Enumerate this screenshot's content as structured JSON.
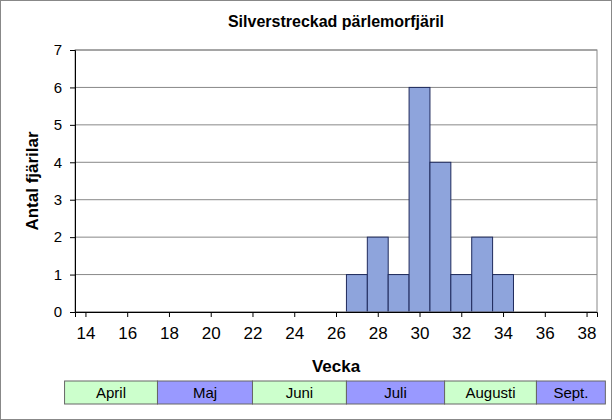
{
  "chart_data": {
    "type": "histogram",
    "title": "Silverstreckad pärlemorfjäril",
    "x_label": "Vecka",
    "y_label": "Antal fjärilar",
    "bins": [
      26.5,
      27.5,
      28.5,
      29.5,
      30.5,
      31.5,
      32.5,
      33.5,
      34.5
    ],
    "values": [
      1,
      2,
      1,
      6,
      4,
      1,
      2,
      1
    ],
    "color": "#8ea4dc",
    "xlim": [
      13.5,
      38.5
    ],
    "xticks": [
      14,
      16,
      18,
      20,
      22,
      24,
      26,
      28,
      30,
      32,
      34,
      36,
      38
    ],
    "ylim": [
      0,
      7
    ],
    "yticks": [
      0,
      1,
      2,
      3,
      4,
      5,
      6,
      7
    ],
    "grid": true,
    "months": [
      {
        "label": "April",
        "start": 13,
        "end": 17.45,
        "color": "#ccffcc"
      },
      {
        "label": "Maj",
        "start": 17.45,
        "end": 22,
        "color": "#9999ff"
      },
      {
        "label": "Juni",
        "start": 22,
        "end": 26.5,
        "color": "#ccffcc"
      },
      {
        "label": "Juli",
        "start": 26.5,
        "end": 31.2,
        "color": "#9999ff"
      },
      {
        "label": "Augusti",
        "start": 31.2,
        "end": 35.6,
        "color": "#ccffcc"
      },
      {
        "label": "Sept.",
        "start": 35.6,
        "end": 38.9,
        "color": "#9999ff"
      }
    ]
  }
}
